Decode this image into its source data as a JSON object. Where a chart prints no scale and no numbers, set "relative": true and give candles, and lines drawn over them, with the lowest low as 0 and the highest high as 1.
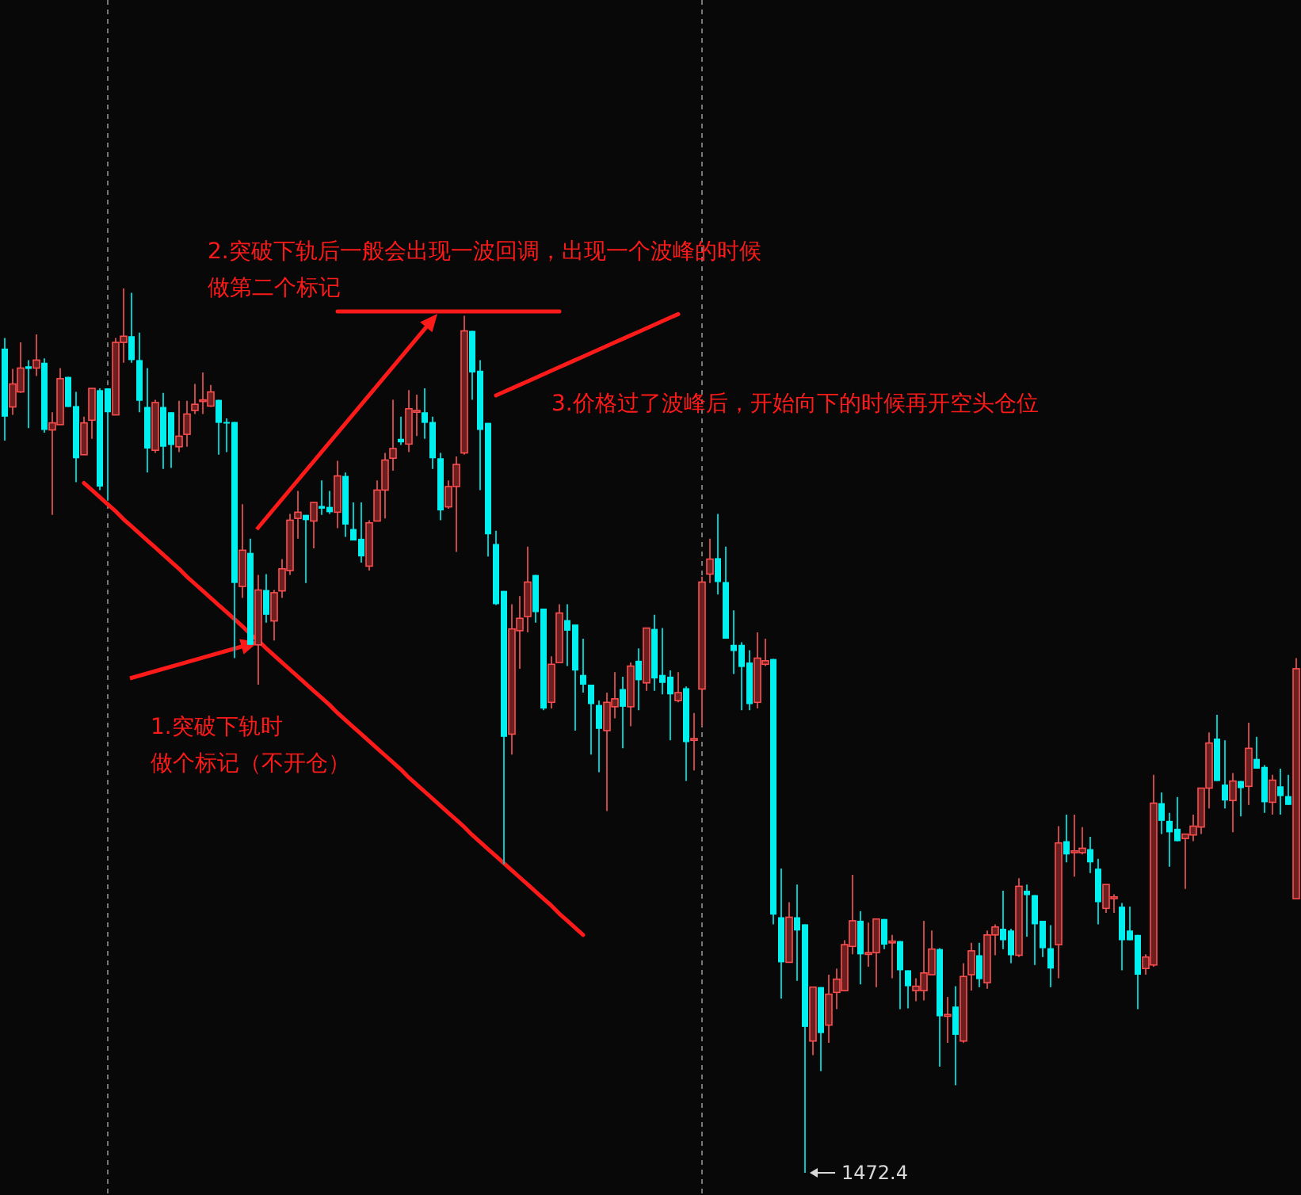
{
  "chart_data": {
    "type": "candlestick",
    "relative": true,
    "annotations": [
      "1.突破下轨时",
      "做个标记（不开仓）",
      "2.突破下轨后一般会出现一波回调，出现一个波峰的时候",
      "做第二个标记",
      "3.价格过了波峰后，开始向下的时候再开空头仓位",
      "1472.4"
    ],
    "series": [
      {
        "type": "line",
        "color": "#ff1a1a",
        "values": [
          null,
          null,
          null,
          null,
          null,
          null,
          null,
          null,
          null,
          null,
          null,
          null,
          null,
          null,
          null,
          null,
          null,
          null,
          null,
          null,
          null,
          null,
          null,
          null,
          null,
          null,
          null,
          null,
          null,
          null,
          null,
          null,
          null,
          null,
          null,
          null,
          null,
          null,
          null,
          null,
          null,
          null,
          null,
          null,
          null,
          null,
          null,
          null,
          null,
          null,
          null,
          null,
          null,
          null,
          null,
          null,
          null,
          null,
          null,
          null,
          null,
          null,
          0.879,
          0.883,
          0.887,
          0.891,
          0.895,
          0.899,
          0.903,
          0.907,
          0.911,
          0.915,
          0.919,
          0.923,
          0.927,
          0.931,
          0.935,
          0.939,
          0.943,
          0.947,
          0.951,
          0.955,
          0.959,
          0.963,
          0.967,
          0.971,
          null,
          null,
          null,
          null,
          null,
          null,
          null,
          null,
          null,
          null,
          null,
          null,
          null,
          null,
          null,
          null,
          null,
          null,
          null,
          null,
          null,
          null,
          null,
          null,
          null,
          null,
          null,
          null,
          null,
          null,
          null,
          null,
          null,
          null,
          null,
          null,
          null,
          null,
          null,
          null,
          null,
          null,
          null,
          null,
          null,
          null,
          null,
          null,
          null,
          null,
          null,
          null,
          null,
          null,
          null,
          null,
          null,
          null,
          null,
          null,
          null,
          null,
          null,
          null,
          null,
          null,
          null,
          null,
          null,
          null,
          null,
          null,
          null,
          null,
          null,
          null,
          null,
          null
        ]
      },
      {
        "type": "line",
        "color": "#ff1a1a",
        "values": [
          null,
          null,
          null,
          null,
          null,
          null,
          null,
          null,
          null,
          null,
          null,
          null,
          null,
          null,
          null,
          null,
          null,
          null,
          null,
          null,
          null,
          null,
          null,
          null,
          null,
          null,
          null,
          null,
          null,
          null,
          null,
          null,
          null,
          null,
          null,
          null,
          null,
          null,
          null,
          null,
          null,
          null,
          0.974,
          0.974,
          0.974,
          0.974,
          0.974,
          0.974,
          0.974,
          0.974,
          0.974,
          0.974,
          0.974,
          0.974,
          0.974,
          0.974,
          0.974,
          0.974,
          0.974,
          0.974,
          0.974,
          0.974,
          0.974,
          0.974,
          0.974,
          0.974,
          0.974,
          0.974,
          0.974,
          0.974,
          0.974,
          null,
          null,
          null,
          null,
          null,
          null,
          null,
          null,
          null,
          null,
          null,
          null,
          null,
          null,
          null,
          null,
          null,
          null,
          null,
          null,
          null,
          null,
          null,
          null,
          null,
          null,
          null,
          null,
          null,
          null,
          null,
          null,
          null,
          null,
          null,
          null,
          null,
          null,
          null,
          null,
          null,
          null,
          null,
          null,
          null,
          null,
          null,
          null,
          null,
          null,
          null,
          null,
          null,
          null,
          null,
          null,
          null,
          null,
          null,
          null,
          null,
          null,
          null,
          null,
          null,
          null,
          null,
          null,
          null,
          null,
          null,
          null,
          null,
          null,
          null,
          null,
          null,
          null,
          null,
          null,
          null,
          null,
          null,
          null,
          null,
          null,
          null,
          null,
          null,
          null,
          null,
          null,
          null
        ]
      },
      {
        "type": "line",
        "color": "#ff1a1a",
        "values": [
          null,
          null,
          null,
          null,
          null,
          null,
          null,
          null,
          null,
          null,
          0.78,
          0.772,
          0.764,
          0.756,
          0.748,
          0.739,
          0.731,
          0.723,
          0.715,
          0.707,
          0.699,
          0.691,
          0.683,
          0.674,
          0.666,
          0.658,
          0.65,
          0.642,
          0.634,
          0.626,
          0.618,
          0.609,
          0.602,
          0.593,
          0.585,
          0.577,
          0.569,
          0.561,
          0.553,
          0.545,
          0.537,
          0.529,
          0.52,
          0.512,
          0.504,
          0.496,
          0.488,
          0.48,
          0.472,
          0.464,
          0.456,
          0.447,
          0.439,
          0.431,
          0.423,
          0.415,
          0.407,
          0.399,
          0.391,
          0.382,
          0.374,
          0.366,
          0.358,
          0.35,
          0.342,
          0.334,
          0.326,
          0.318,
          0.31,
          0.302,
          0.293,
          0.285,
          0.277,
          0.269,
          null,
          null,
          null,
          null,
          null,
          null,
          null,
          null,
          null,
          null,
          null,
          null,
          null,
          null,
          null,
          null,
          null,
          null,
          null,
          null,
          null,
          null,
          null,
          null,
          null,
          null,
          null,
          null,
          null,
          null,
          null,
          null,
          null,
          null,
          null,
          null,
          null,
          null,
          null,
          null,
          null,
          null,
          null,
          null,
          null,
          null,
          null,
          null,
          null,
          null,
          null,
          null,
          null,
          null,
          null,
          null,
          null,
          null,
          null,
          null,
          null,
          null,
          null,
          null,
          null,
          null,
          null,
          null,
          null,
          null,
          null,
          null,
          null,
          null,
          null,
          null,
          null,
          null,
          null,
          null,
          null,
          null,
          null,
          null,
          null,
          null,
          null,
          null,
          null,
          null
        ]
      }
    ],
    "categories": [
      null,
      null,
      null,
      null,
      null,
      null,
      null,
      null,
      null,
      null,
      null,
      null,
      null,
      null,
      null,
      null,
      null,
      null,
      null,
      null,
      null,
      null,
      null,
      null,
      null,
      null,
      null,
      null,
      null,
      null,
      null,
      null,
      null,
      null,
      null,
      null,
      null,
      null,
      null,
      null,
      null,
      null,
      null,
      null,
      null,
      null,
      null,
      null,
      null,
      null,
      null,
      null,
      null,
      null,
      null,
      null,
      null,
      null,
      null,
      null,
      null,
      null,
      null,
      null,
      null,
      null,
      null,
      null,
      null,
      null,
      null,
      null,
      null,
      null,
      null,
      null,
      null,
      null,
      null,
      null,
      null,
      null,
      null,
      null,
      null,
      null,
      null,
      null,
      null,
      null,
      null,
      null,
      null,
      null,
      null,
      null,
      null,
      null,
      null,
      null,
      null,
      null,
      null,
      null,
      null,
      null,
      null,
      null,
      null,
      null,
      null,
      null,
      null,
      null,
      null,
      null,
      null,
      null,
      null,
      null,
      null,
      null,
      null,
      null,
      null,
      null,
      null,
      null,
      null,
      null,
      null,
      null,
      null,
      null,
      null,
      null,
      null,
      null,
      null,
      null,
      null,
      null,
      null,
      null,
      null,
      null,
      null,
      null,
      null,
      null,
      null,
      null,
      null,
      null,
      null,
      null,
      null,
      null,
      null,
      null,
      null,
      null,
      null,
      null
    ],
    "ohlc": [
      [
        0.932,
        0.944,
        0.828,
        0.855
      ],
      [
        0.866,
        0.909,
        0.857,
        0.892
      ],
      [
        0.883,
        0.939,
        0.882,
        0.91
      ],
      [
        0.912,
        0.919,
        0.842,
        0.909
      ],
      [
        0.91,
        0.948,
        0.901,
        0.919
      ],
      [
        0.916,
        0.921,
        0.837,
        0.84
      ],
      [
        0.84,
        0.86,
        0.744,
        0.848
      ],
      [
        0.846,
        0.91,
        0.846,
        0.898
      ],
      [
        0.9,
        0.9,
        0.866,
        0.866
      ],
      [
        0.867,
        0.883,
        0.781,
        0.808
      ],
      [
        0.812,
        0.855,
        0.812,
        0.848
      ],
      [
        0.851,
        0.887,
        0.83,
        0.887
      ],
      [
        0.885,
        0.887,
        0.772,
        0.776
      ],
      [
        0.887,
        0.887,
        0.76,
        0.86
      ],
      [
        0.857,
        0.944,
        0.857,
        0.939
      ],
      [
        0.939,
        1,
        0.916,
        0.946
      ],
      [
        0.946,
        0.995,
        0.916,
        0.919
      ],
      [
        0.919,
        0.95,
        0.86,
        0.873
      ],
      [
        0.866,
        0.91,
        0.792,
        0.819
      ],
      [
        0.817,
        0.874,
        0.814,
        0.871
      ],
      [
        0.866,
        0.882,
        0.796,
        0.821
      ],
      [
        0.86,
        0.86,
        0.797,
        0.823
      ],
      [
        0.821,
        0.873,
        0.815,
        0.833
      ],
      [
        0.835,
        0.873,
        0.821,
        0.858
      ],
      [
        0.862,
        0.892,
        0.858,
        0.869
      ],
      [
        0.873,
        0.905,
        0.858,
        0.874
      ],
      [
        0.867,
        0.891,
        0.866,
        0.883
      ],
      [
        0.874,
        0.874,
        0.812,
        0.848
      ],
      [
        0.849,
        0.853,
        0.815,
        0.848
      ],
      [
        0.849,
        0.849,
        0.582,
        0.667
      ],
      [
        0.663,
        0.756,
        0.65,
        0.704
      ],
      [
        0.701,
        0.717,
        0.597,
        0.597
      ],
      [
        0.597,
        0.676,
        0.552,
        0.659
      ],
      [
        0.659,
        0.677,
        0.622,
        0.631
      ],
      [
        0.624,
        0.659,
        0.602,
        0.656
      ],
      [
        0.658,
        0.694,
        0.65,
        0.683
      ],
      [
        0.681,
        0.745,
        0.676,
        0.738
      ],
      [
        0.74,
        0.771,
        0.717,
        0.747
      ],
      [
        0.744,
        0.744,
        0.667,
        0.738
      ],
      [
        0.737,
        0.758,
        0.706,
        0.758
      ],
      [
        0.754,
        0.783,
        0.744,
        0.751
      ],
      [
        0.753,
        0.771,
        0.745,
        0.747
      ],
      [
        0.747,
        0.805,
        0.729,
        0.788
      ],
      [
        0.788,
        0.792,
        0.719,
        0.733
      ],
      [
        0.728,
        0.758,
        0.715,
        0.715
      ],
      [
        0.717,
        0.758,
        0.69,
        0.697
      ],
      [
        0.686,
        0.738,
        0.681,
        0.735
      ],
      [
        0.737,
        0.783,
        0.737,
        0.772
      ],
      [
        0.772,
        0.814,
        0.74,
        0.806
      ],
      [
        0.808,
        0.874,
        0.794,
        0.819
      ],
      [
        0.83,
        0.855,
        0.823,
        0.826
      ],
      [
        0.824,
        0.885,
        0.815,
        0.864
      ],
      [
        0.86,
        0.88,
        0.833,
        0.862
      ],
      [
        0.86,
        0.887,
        0.83,
        0.848
      ],
      [
        0.849,
        0.855,
        0.796,
        0.808
      ],
      [
        0.808,
        0.814,
        0.738,
        0.749
      ],
      [
        0.753,
        0.783,
        0.751,
        0.776
      ],
      [
        0.776,
        0.81,
        0.702,
        0.801
      ],
      [
        0.814,
        0.969,
        0.812,
        0.952
      ],
      [
        0.952,
        0.952,
        0.874,
        0.905
      ],
      [
        0.907,
        0.919,
        0.772,
        0.84
      ],
      [
        0.848,
        0.848,
        0.697,
        0.722
      ],
      [
        0.711,
        0.726,
        0.642,
        0.643
      ],
      [
        0.658,
        0.658,
        0.349,
        0.493
      ],
      [
        0.496,
        0.643,
        0.473,
        0.615
      ],
      [
        0.613,
        0.652,
        0.57,
        0.627
      ],
      [
        0.629,
        0.708,
        0.611,
        0.668
      ],
      [
        0.676,
        0.676,
        0.622,
        0.634
      ],
      [
        0.638,
        0.638,
        0.523,
        0.525
      ],
      [
        0.532,
        0.584,
        0.525,
        0.575
      ],
      [
        0.577,
        0.643,
        0.577,
        0.633
      ],
      [
        0.625,
        0.643,
        0.573,
        0.613
      ],
      [
        0.62,
        0.62,
        0.5,
        0.568
      ],
      [
        0.563,
        0.604,
        0.543,
        0.552
      ],
      [
        0.552,
        0.552,
        0.473,
        0.53
      ],
      [
        0.529,
        0.534,
        0.453,
        0.502
      ],
      [
        0.5,
        0.543,
        0.409,
        0.532
      ],
      [
        0.527,
        0.566,
        0.514,
        0.536
      ],
      [
        0.547,
        0.561,
        0.48,
        0.527
      ],
      [
        0.527,
        0.577,
        0.505,
        0.573
      ],
      [
        0.579,
        0.593,
        0.523,
        0.557
      ],
      [
        0.554,
        0.616,
        0.545,
        0.616
      ],
      [
        0.615,
        0.631,
        0.545,
        0.559
      ],
      [
        0.563,
        0.616,
        0.541,
        0.554
      ],
      [
        0.561,
        0.568,
        0.489,
        0.541
      ],
      [
        0.534,
        0.566,
        0.532,
        0.543
      ],
      [
        0.548,
        0.55,
        0.443,
        0.487
      ],
      [
        0.489,
        0.52,
        0.455,
        0.491
      ],
      [
        0.547,
        0.674,
        0.505,
        0.668
      ],
      [
        0.677,
        0.717,
        0.667,
        0.694
      ],
      [
        0.695,
        0.745,
        0.654,
        0.668
      ],
      [
        0.668,
        0.708,
        0.604,
        0.604
      ],
      [
        0.597,
        0.636,
        0.564,
        0.59
      ],
      [
        0.597,
        0.6,
        0.523,
        0.572
      ],
      [
        0.577,
        0.591,
        0.523,
        0.53
      ],
      [
        0.532,
        0.611,
        0.525,
        0.582
      ],
      [
        0.575,
        0.604,
        0.573,
        0.579
      ],
      [
        0.581,
        0.581,
        0.281,
        0.292
      ],
      [
        0.289,
        0.344,
        0.197,
        0.238
      ],
      [
        0.238,
        0.306,
        0.238,
        0.289
      ],
      [
        0.289,
        0.326,
        0.217,
        0.274
      ],
      [
        0.281,
        0.281,
        0,
        0.165
      ],
      [
        0.149,
        0.21,
        0.133,
        0.21
      ],
      [
        0.21,
        0.21,
        0.115,
        0.158
      ],
      [
        0.167,
        0.224,
        0.147,
        0.202
      ],
      [
        0.204,
        0.231,
        0.185,
        0.219
      ],
      [
        0.206,
        0.263,
        0.206,
        0.258
      ],
      [
        0.256,
        0.337,
        0.247,
        0.285
      ],
      [
        0.285,
        0.296,
        0.213,
        0.247
      ],
      [
        0.247,
        0.283,
        0.233,
        0.249
      ],
      [
        0.249,
        0.287,
        0.21,
        0.287
      ],
      [
        0.287,
        0.287,
        0.253,
        0.258
      ],
      [
        0.26,
        0.269,
        0.22,
        0.262
      ],
      [
        0.262,
        0.262,
        0.185,
        0.229
      ],
      [
        0.229,
        0.229,
        0.186,
        0.211
      ],
      [
        0.206,
        0.22,
        0.194,
        0.211
      ],
      [
        0.206,
        0.285,
        0.195,
        0.226
      ],
      [
        0.224,
        0.274,
        0.224,
        0.253
      ],
      [
        0.253,
        0.254,
        0.12,
        0.177
      ],
      [
        0.177,
        0.199,
        0.147,
        0.179
      ],
      [
        0.188,
        0.211,
        0.099,
        0.156
      ],
      [
        0.149,
        0.237,
        0.147,
        0.222
      ],
      [
        0.224,
        0.26,
        0.206,
        0.251
      ],
      [
        0.246,
        0.26,
        0.21,
        0.219
      ],
      [
        0.215,
        0.274,
        0.208,
        0.269
      ],
      [
        0.269,
        0.281,
        0.246,
        0.278
      ],
      [
        0.276,
        0.319,
        0.253,
        0.263
      ],
      [
        0.274,
        0.276,
        0.237,
        0.246
      ],
      [
        0.246,
        0.333,
        0.244,
        0.324
      ],
      [
        0.319,
        0.326,
        0.267,
        0.314
      ],
      [
        0.314,
        0.314,
        0.235,
        0.281
      ],
      [
        0.285,
        0.285,
        0.244,
        0.254
      ],
      [
        0.254,
        0.28,
        0.21,
        0.231
      ],
      [
        0.258,
        0.392,
        0.22,
        0.373
      ],
      [
        0.375,
        0.405,
        0.351,
        0.36
      ],
      [
        0.362,
        0.405,
        0.335,
        0.364
      ],
      [
        0.362,
        0.391,
        0.36,
        0.367
      ],
      [
        0.366,
        0.38,
        0.339,
        0.351
      ],
      [
        0.344,
        0.355,
        0.281,
        0.306
      ],
      [
        0.299,
        0.326,
        0.294,
        0.326
      ],
      [
        0.31,
        0.315,
        0.294,
        0.312
      ],
      [
        0.301,
        0.305,
        0.229,
        0.263
      ],
      [
        0.274,
        0.301,
        0.263,
        0.263
      ],
      [
        0.269,
        0.269,
        0.185,
        0.224
      ],
      [
        0.231,
        0.247,
        0.224,
        0.244
      ],
      [
        0.235,
        0.45,
        0.233,
        0.418
      ],
      [
        0.418,
        0.43,
        0.383,
        0.398
      ],
      [
        0.398,
        0.407,
        0.346,
        0.385
      ],
      [
        0.389,
        0.425,
        0.375,
        0.375
      ],
      [
        0.378,
        0.383,
        0.321,
        0.383
      ],
      [
        0.382,
        0.405,
        0.375,
        0.392
      ],
      [
        0.391,
        0.435,
        0.383,
        0.435
      ],
      [
        0.435,
        0.498,
        0.412,
        0.486
      ],
      [
        0.491,
        0.518,
        0.443,
        0.443
      ],
      [
        0.439,
        0.489,
        0.412,
        0.421
      ],
      [
        0.421,
        0.452,
        0.385,
        0.443
      ],
      [
        0.443,
        0.443,
        0.403,
        0.435
      ],
      [
        0.437,
        0.509,
        0.416,
        0.48
      ],
      [
        0.468,
        0.493,
        0.457,
        0.457
      ],
      [
        0.459,
        0.461,
        0.407,
        0.419
      ],
      [
        0.419,
        0.45,
        0.405,
        0.444
      ],
      [
        0.437,
        0.457,
        0.405,
        0.426
      ],
      [
        0.426,
        0.45,
        0.416,
        0.416
      ],
      [
        0.31,
        0.582,
        0.31,
        0.57
      ]
    ]
  }
}
